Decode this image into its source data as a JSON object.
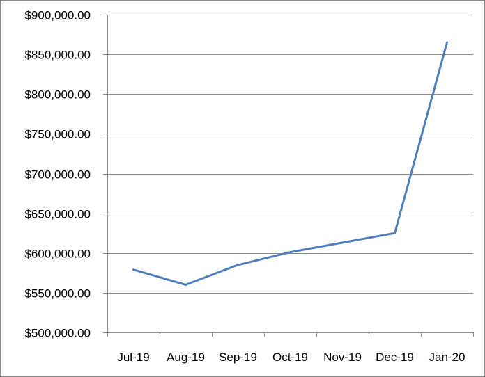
{
  "chart_data": {
    "type": "line",
    "title": "",
    "xlabel": "",
    "ylabel": "",
    "categories": [
      "Jul-19",
      "Aug-19",
      "Sep-19",
      "Oct-19",
      "Nov-19",
      "Dec-19",
      "Jan-20"
    ],
    "series": [
      {
        "values": [
          579000,
          560000,
          585000,
          601000,
          613000,
          625000,
          865000
        ]
      }
    ],
    "ylim": [
      500000,
      900000
    ],
    "yticks": [
      500000,
      550000,
      600000,
      650000,
      700000,
      750000,
      800000,
      850000,
      900000
    ],
    "ytick_labels": [
      "$500,000.00",
      "$550,000.00",
      "$600,000.00",
      "$650,000.00",
      "$700,000.00",
      "$750,000.00",
      "$800,000.00",
      "$850,000.00",
      "$900,000.00"
    ],
    "grid": true,
    "legend": "none",
    "colors": {
      "line": "#4f7fba",
      "grid": "#8c8c8c",
      "axis": "#8c8c8c",
      "text": "#000000"
    }
  }
}
